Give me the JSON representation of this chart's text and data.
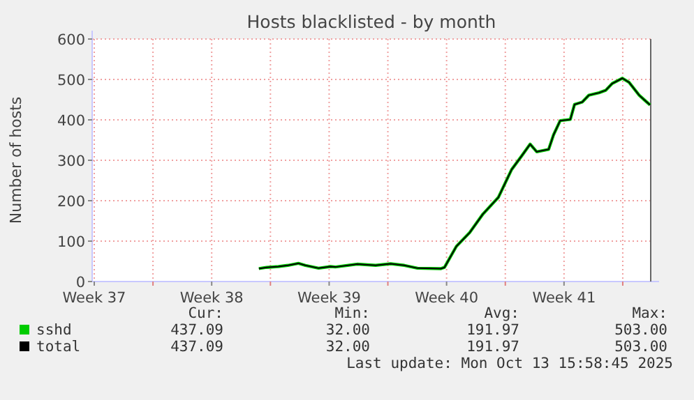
{
  "chart_data": {
    "type": "line",
    "title": "Hosts blacklisted - by month",
    "ylabel": "Number of hosts",
    "x": [
      "2025-09-20T07:30",
      "2025-09-20T18:30",
      "2025-09-21T11:30",
      "2025-09-22T01:00",
      "2025-09-22T16:00",
      "2025-09-23T02:00",
      "2025-09-23T21:00",
      "2025-09-24T14:00",
      "2025-09-24T21:00",
      "2025-09-26T04:00",
      "2025-09-27T06:30",
      "2025-09-28T04:00",
      "2025-09-28T23:30",
      "2025-09-29T18:30",
      "2025-10-01T04:00",
      "2025-10-01T09:00",
      "2025-10-02T02:00",
      "2025-10-02T21:00",
      "2025-10-03T16:00",
      "2025-10-04T14:00",
      "2025-10-05T09:00",
      "2025-10-05T23:30",
      "2025-10-06T11:30",
      "2025-10-06T21:00",
      "2025-10-07T14:00",
      "2025-10-07T21:00",
      "2025-10-08T06:30",
      "2025-10-08T21:00",
      "2025-10-09T03:00",
      "2025-10-09T14:00",
      "2025-10-09T23:30",
      "2025-10-10T14:00",
      "2025-10-10T23:30",
      "2025-10-11T09:00",
      "2025-10-11T23:30",
      "2025-10-12T09:00",
      "2025-10-12T23:30",
      "2025-10-13T06:30",
      "2025-10-13T15:00"
    ],
    "series": [
      {
        "name": "sshd",
        "color": "#00cc00",
        "values": [
          32,
          35,
          37,
          40,
          45,
          40,
          33,
          37,
          36,
          43,
          40,
          44,
          40,
          33,
          32,
          35,
          87,
          121,
          167,
          208,
          277,
          311,
          340,
          321,
          327,
          363,
          398,
          401,
          438,
          444,
          461,
          467,
          473,
          490,
          503,
          493,
          461,
          450,
          437
        ]
      },
      {
        "name": "total",
        "color": "#000000",
        "values": [
          32,
          35,
          37,
          40,
          45,
          40,
          33,
          37,
          36,
          43,
          40,
          44,
          40,
          33,
          32,
          35,
          87,
          121,
          167,
          208,
          277,
          311,
          340,
          321,
          327,
          363,
          398,
          401,
          438,
          444,
          461,
          467,
          473,
          490,
          503,
          493,
          461,
          450,
          437
        ]
      }
    ],
    "xlim": [
      "2025-09-10T09:00",
      "2025-10-13T16:00"
    ],
    "xticks": [
      {
        "value": "2025-09-10T12:00",
        "label": "Week 37"
      },
      {
        "value": "2025-09-14T00:00",
        "label": null
      },
      {
        "value": "2025-09-17T12:00",
        "label": "Week 38"
      },
      {
        "value": "2025-09-21T00:00",
        "label": null
      },
      {
        "value": "2025-09-24T12:00",
        "label": "Week 39"
      },
      {
        "value": "2025-09-28T00:00",
        "label": null
      },
      {
        "value": "2025-10-01T12:00",
        "label": "Week 40"
      },
      {
        "value": "2025-10-05T00:00",
        "label": null
      },
      {
        "value": "2025-10-08T12:00",
        "label": "Week 41"
      },
      {
        "value": "2025-10-12T00:00",
        "label": null
      }
    ],
    "ylim": [
      0,
      600
    ],
    "yticks": [
      0,
      100,
      200,
      300,
      400,
      500,
      600
    ],
    "grid": true,
    "legend": "bottom",
    "marker": "none",
    "line_style": "solid",
    "annotations": [
      "Cur:",
      "Min:",
      "Avg:",
      "Max:",
      "437.09",
      "32.00",
      "191.97",
      "503.00",
      "437.09",
      "32.00",
      "191.97",
      "503.00",
      "Last update: Mon Oct 13 15:58:45 2025"
    ]
  }
}
